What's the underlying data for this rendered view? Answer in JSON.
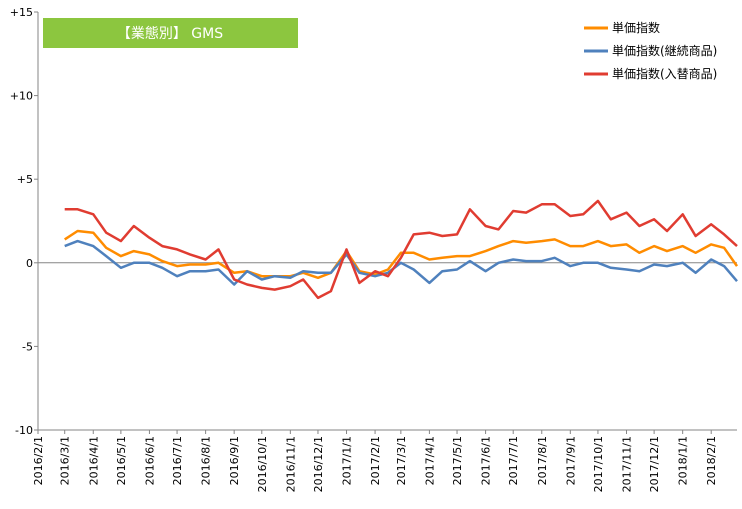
{
  "chart_data": {
    "type": "line",
    "title": "【業態別】 GMS",
    "title_bg": "#8cc63f",
    "xlabel": "",
    "ylabel": "",
    "ylim": [
      -10,
      15
    ],
    "yticks": [
      {
        "v": 15,
        "label": "+15"
      },
      {
        "v": 10,
        "label": "+10"
      },
      {
        "v": 5,
        "label": "+5"
      },
      {
        "v": 0,
        "label": "0"
      },
      {
        "v": -5,
        "label": "-5"
      },
      {
        "v": -10,
        "label": "-10"
      }
    ],
    "x_start": "2016/2/1",
    "x_end": "2018/3/1",
    "x_tick_labels": [
      "2016/2/1",
      "2016/3/1",
      "2016/4/1",
      "2016/5/1",
      "2016/6/1",
      "2016/7/1",
      "2016/8/1",
      "2016/9/1",
      "2016/10/1",
      "2016/11/1",
      "2016/12/1",
      "2017/1/1",
      "2017/2/1",
      "2017/3/1",
      "2017/4/1",
      "2017/5/1",
      "2017/6/1",
      "2017/7/1",
      "2017/8/1",
      "2017/9/1",
      "2017/10/1",
      "2017/11/1",
      "2017/12/1",
      "2018/1/1",
      "2018/2/1"
    ],
    "grid": false,
    "legend_position": "top-right",
    "series": [
      {
        "name": "単価指数",
        "color": "#ff8c00",
        "points": [
          [
            "2016/3/1",
            1.4
          ],
          [
            "2016/3/15",
            1.9
          ],
          [
            "2016/4/1",
            1.8
          ],
          [
            "2016/4/15",
            0.9
          ],
          [
            "2016/5/1",
            0.4
          ],
          [
            "2016/5/15",
            0.7
          ],
          [
            "2016/6/1",
            0.5
          ],
          [
            "2016/6/15",
            0.1
          ],
          [
            "2016/7/1",
            -0.2
          ],
          [
            "2016/7/15",
            -0.1
          ],
          [
            "2016/8/1",
            -0.1
          ],
          [
            "2016/8/15",
            0.0
          ],
          [
            "2016/9/1",
            -0.6
          ],
          [
            "2016/9/15",
            -0.5
          ],
          [
            "2016/10/1",
            -0.8
          ],
          [
            "2016/10/15",
            -0.8
          ],
          [
            "2016/11/1",
            -0.8
          ],
          [
            "2016/11/15",
            -0.6
          ],
          [
            "2016/12/1",
            -0.9
          ],
          [
            "2016/12/15",
            -0.6
          ],
          [
            "2017/1/1",
            0.7
          ],
          [
            "2017/1/15",
            -0.5
          ],
          [
            "2017/2/1",
            -0.7
          ],
          [
            "2017/2/15",
            -0.4
          ],
          [
            "2017/3/1",
            0.6
          ],
          [
            "2017/3/15",
            0.6
          ],
          [
            "2017/4/1",
            0.2
          ],
          [
            "2017/4/15",
            0.3
          ],
          [
            "2017/5/1",
            0.4
          ],
          [
            "2017/5/15",
            0.4
          ],
          [
            "2017/6/1",
            0.7
          ],
          [
            "2017/6/15",
            1.0
          ],
          [
            "2017/7/1",
            1.3
          ],
          [
            "2017/7/15",
            1.2
          ],
          [
            "2017/8/1",
            1.3
          ],
          [
            "2017/8/15",
            1.4
          ],
          [
            "2017/9/1",
            1.0
          ],
          [
            "2017/9/15",
            1.0
          ],
          [
            "2017/10/1",
            1.3
          ],
          [
            "2017/10/15",
            1.0
          ],
          [
            "2017/11/1",
            1.1
          ],
          [
            "2017/11/15",
            0.6
          ],
          [
            "2017/12/1",
            1.0
          ],
          [
            "2017/12/15",
            0.7
          ],
          [
            "2018/1/1",
            1.0
          ],
          [
            "2018/1/15",
            0.6
          ],
          [
            "2018/2/1",
            1.1
          ],
          [
            "2018/2/15",
            0.9
          ],
          [
            "2018/3/1",
            -0.2
          ]
        ]
      },
      {
        "name": "単価指数(継続商品)",
        "color": "#4f81bd",
        "points": [
          [
            "2016/3/1",
            1.0
          ],
          [
            "2016/3/15",
            1.3
          ],
          [
            "2016/4/1",
            1.0
          ],
          [
            "2016/4/15",
            0.4
          ],
          [
            "2016/5/1",
            -0.3
          ],
          [
            "2016/5/15",
            0.0
          ],
          [
            "2016/6/1",
            0.0
          ],
          [
            "2016/6/15",
            -0.3
          ],
          [
            "2016/7/1",
            -0.8
          ],
          [
            "2016/7/15",
            -0.5
          ],
          [
            "2016/8/1",
            -0.5
          ],
          [
            "2016/8/15",
            -0.4
          ],
          [
            "2016/9/1",
            -1.3
          ],
          [
            "2016/9/15",
            -0.5
          ],
          [
            "2016/10/1",
            -1.0
          ],
          [
            "2016/10/15",
            -0.8
          ],
          [
            "2016/11/1",
            -0.9
          ],
          [
            "2016/11/15",
            -0.5
          ],
          [
            "2016/12/1",
            -0.6
          ],
          [
            "2016/12/15",
            -0.6
          ],
          [
            "2017/1/1",
            0.5
          ],
          [
            "2017/1/15",
            -0.6
          ],
          [
            "2017/2/1",
            -0.8
          ],
          [
            "2017/2/15",
            -0.6
          ],
          [
            "2017/3/1",
            0.0
          ],
          [
            "2017/3/15",
            -0.4
          ],
          [
            "2017/4/1",
            -1.2
          ],
          [
            "2017/4/15",
            -0.5
          ],
          [
            "2017/5/1",
            -0.4
          ],
          [
            "2017/5/15",
            0.1
          ],
          [
            "2017/6/1",
            -0.5
          ],
          [
            "2017/6/15",
            0.0
          ],
          [
            "2017/7/1",
            0.2
          ],
          [
            "2017/7/15",
            0.1
          ],
          [
            "2017/8/1",
            0.1
          ],
          [
            "2017/8/15",
            0.3
          ],
          [
            "2017/9/1",
            -0.2
          ],
          [
            "2017/9/15",
            0.0
          ],
          [
            "2017/10/1",
            0.0
          ],
          [
            "2017/10/15",
            -0.3
          ],
          [
            "2017/11/1",
            -0.4
          ],
          [
            "2017/11/15",
            -0.5
          ],
          [
            "2017/12/1",
            -0.1
          ],
          [
            "2017/12/15",
            -0.2
          ],
          [
            "2018/1/1",
            0.0
          ],
          [
            "2018/1/15",
            -0.6
          ],
          [
            "2018/2/1",
            0.2
          ],
          [
            "2018/2/15",
            -0.2
          ],
          [
            "2018/3/1",
            -1.1
          ]
        ]
      },
      {
        "name": "単価指数(入替商品)",
        "color": "#e03c31",
        "points": [
          [
            "2016/3/1",
            3.2
          ],
          [
            "2016/3/15",
            3.2
          ],
          [
            "2016/4/1",
            2.9
          ],
          [
            "2016/4/15",
            1.8
          ],
          [
            "2016/5/1",
            1.3
          ],
          [
            "2016/5/15",
            2.2
          ],
          [
            "2016/6/1",
            1.5
          ],
          [
            "2016/6/15",
            1.0
          ],
          [
            "2016/7/1",
            0.8
          ],
          [
            "2016/7/15",
            0.5
          ],
          [
            "2016/8/1",
            0.2
          ],
          [
            "2016/8/15",
            0.8
          ],
          [
            "2016/9/1",
            -1.0
          ],
          [
            "2016/9/15",
            -1.3
          ],
          [
            "2016/10/1",
            -1.5
          ],
          [
            "2016/10/15",
            -1.6
          ],
          [
            "2016/11/1",
            -1.4
          ],
          [
            "2016/11/15",
            -1.0
          ],
          [
            "2016/12/1",
            -2.1
          ],
          [
            "2016/12/15",
            -1.7
          ],
          [
            "2017/1/1",
            0.8
          ],
          [
            "2017/1/15",
            -1.2
          ],
          [
            "2017/2/1",
            -0.5
          ],
          [
            "2017/2/15",
            -0.8
          ],
          [
            "2017/3/1",
            0.3
          ],
          [
            "2017/3/15",
            1.7
          ],
          [
            "2017/4/1",
            1.8
          ],
          [
            "2017/4/15",
            1.6
          ],
          [
            "2017/5/1",
            1.7
          ],
          [
            "2017/5/15",
            3.2
          ],
          [
            "2017/6/1",
            2.2
          ],
          [
            "2017/6/15",
            2.0
          ],
          [
            "2017/7/1",
            3.1
          ],
          [
            "2017/7/15",
            3.0
          ],
          [
            "2017/8/1",
            3.5
          ],
          [
            "2017/8/15",
            3.5
          ],
          [
            "2017/9/1",
            2.8
          ],
          [
            "2017/9/15",
            2.9
          ],
          [
            "2017/10/1",
            3.7
          ],
          [
            "2017/10/15",
            2.6
          ],
          [
            "2017/11/1",
            3.0
          ],
          [
            "2017/11/15",
            2.2
          ],
          [
            "2017/12/1",
            2.6
          ],
          [
            "2017/12/15",
            1.9
          ],
          [
            "2018/1/1",
            2.9
          ],
          [
            "2018/1/15",
            1.6
          ],
          [
            "2018/2/1",
            2.3
          ],
          [
            "2018/2/15",
            1.7
          ],
          [
            "2018/3/1",
            1.0
          ]
        ]
      }
    ]
  }
}
